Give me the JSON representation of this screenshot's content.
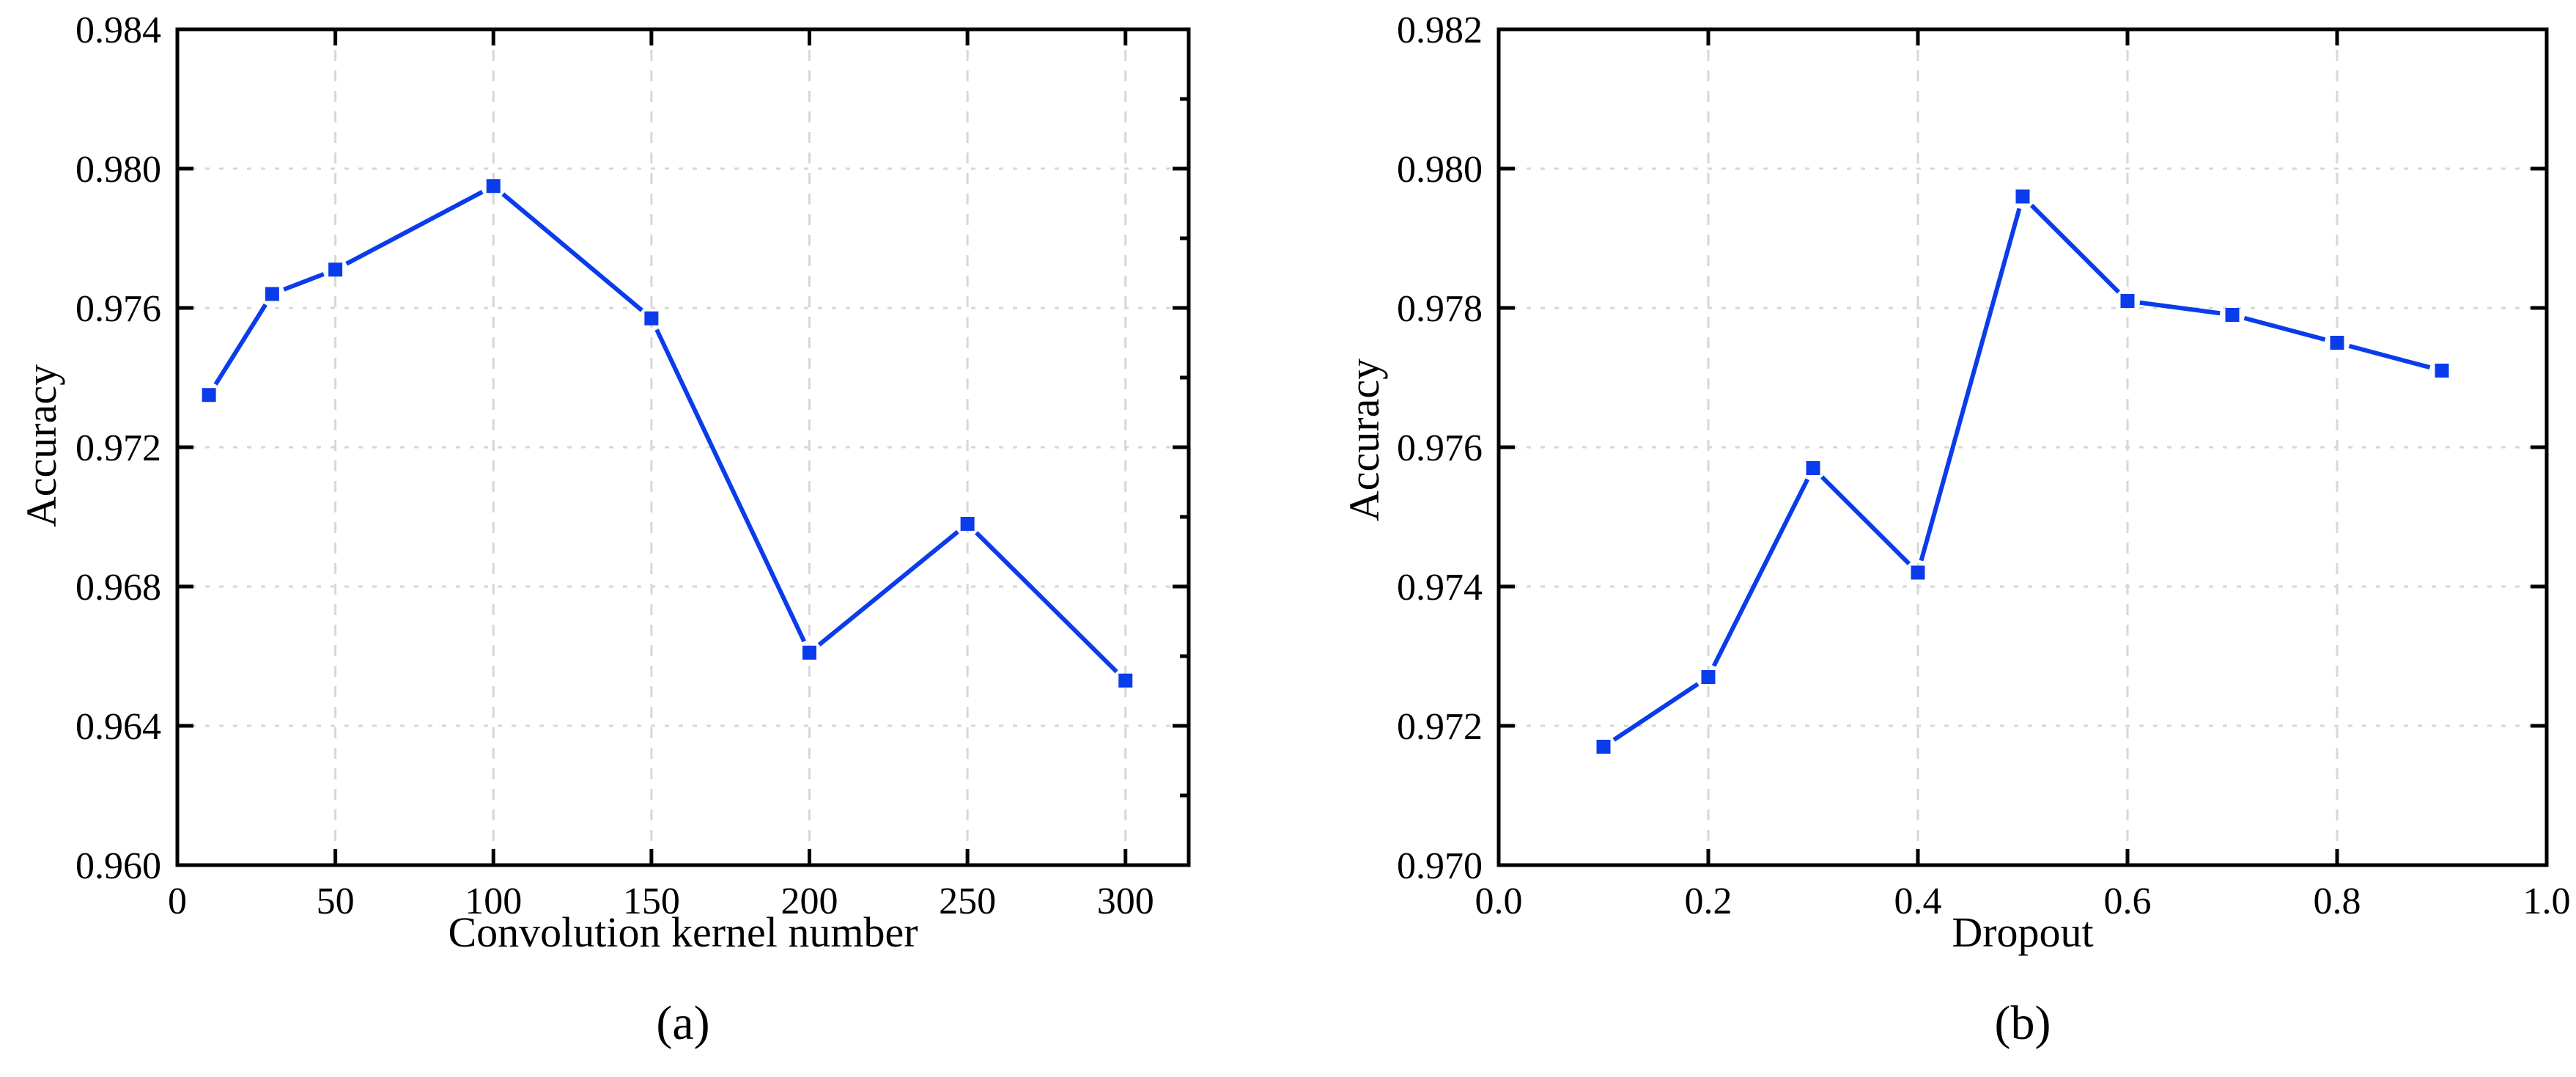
{
  "figure": {
    "background": "#ffffff",
    "series_color": "#0b3ceb",
    "grid_color": "#d7d7d7",
    "axis_color": "#000000",
    "text_color": "#000000"
  },
  "chart_data": [
    {
      "id": "a",
      "type": "line",
      "title": "",
      "xlabel": "Convolution kernel number",
      "ylabel": "Accuracy",
      "caption": "(a)",
      "legend": "none",
      "grid": true,
      "marker": "square",
      "xlim": [
        0,
        320
      ],
      "ylim": [
        0.96,
        0.984
      ],
      "y_minor_step": 0.002,
      "xticks": [
        {
          "v": 0,
          "label": "0"
        },
        {
          "v": 50,
          "label": "50"
        },
        {
          "v": 100,
          "label": "100"
        },
        {
          "v": 150,
          "label": "150"
        },
        {
          "v": 200,
          "label": "200"
        },
        {
          "v": 250,
          "label": "250"
        },
        {
          "v": 300,
          "label": "300"
        }
      ],
      "yticks": [
        {
          "v": 0.96,
          "label": "0.960"
        },
        {
          "v": 0.964,
          "label": "0.964"
        },
        {
          "v": 0.968,
          "label": "0.968"
        },
        {
          "v": 0.972,
          "label": "0.972"
        },
        {
          "v": 0.976,
          "label": "0.976"
        },
        {
          "v": 0.98,
          "label": "0.980"
        },
        {
          "v": 0.984,
          "label": "0.984"
        }
      ],
      "series": [
        {
          "name": "accuracy-vs-kernel-number",
          "x": [
            10,
            30,
            50,
            100,
            150,
            200,
            250,
            300
          ],
          "y": [
            0.9735,
            0.9764,
            0.9771,
            0.9795,
            0.9757,
            0.9661,
            0.9698,
            0.9653
          ]
        }
      ]
    },
    {
      "id": "b",
      "type": "line",
      "title": "",
      "xlabel": "Dropout",
      "ylabel": "Accuracy",
      "caption": "(b)",
      "legend": "none",
      "grid": true,
      "marker": "square",
      "xlim": [
        0.0,
        1.0
      ],
      "ylim": [
        0.97,
        0.982
      ],
      "y_minor_step": null,
      "xticks": [
        {
          "v": 0.0,
          "label": "0.0"
        },
        {
          "v": 0.2,
          "label": "0.2"
        },
        {
          "v": 0.4,
          "label": "0.4"
        },
        {
          "v": 0.6,
          "label": "0.6"
        },
        {
          "v": 0.8,
          "label": "0.8"
        },
        {
          "v": 1.0,
          "label": "1.0"
        }
      ],
      "yticks": [
        {
          "v": 0.97,
          "label": "0.970"
        },
        {
          "v": 0.972,
          "label": "0.972"
        },
        {
          "v": 0.974,
          "label": "0.974"
        },
        {
          "v": 0.976,
          "label": "0.976"
        },
        {
          "v": 0.978,
          "label": "0.978"
        },
        {
          "v": 0.98,
          "label": "0.980"
        },
        {
          "v": 0.982,
          "label": "0.982"
        }
      ],
      "series": [
        {
          "name": "accuracy-vs-dropout",
          "x": [
            0.1,
            0.2,
            0.3,
            0.4,
            0.5,
            0.6,
            0.7,
            0.8,
            0.9
          ],
          "y": [
            0.9717,
            0.9727,
            0.9757,
            0.9742,
            0.9796,
            0.9781,
            0.9779,
            0.9775,
            0.9771
          ]
        }
      ]
    }
  ]
}
